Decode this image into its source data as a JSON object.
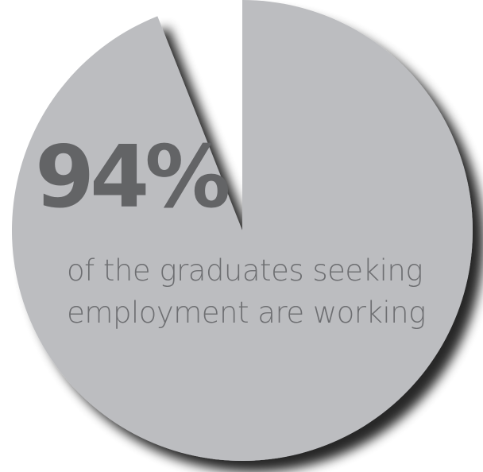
{
  "colors": {
    "pie_fill": "#bcbdc0",
    "shadow": "#1a1a1a",
    "headline": "#636466",
    "subtitle": "#6d6e71",
    "background": "#ffffff"
  },
  "headline": "94%",
  "caption": {
    "line1": "of the graduates seeking",
    "line2": "employment are working"
  },
  "chart_data": {
    "type": "pie",
    "title": "",
    "slices": [
      {
        "label": "",
        "value": 94,
        "color": "#bcbdc0"
      },
      {
        "label": "",
        "value": 6,
        "color": "#ffffff"
      }
    ]
  }
}
